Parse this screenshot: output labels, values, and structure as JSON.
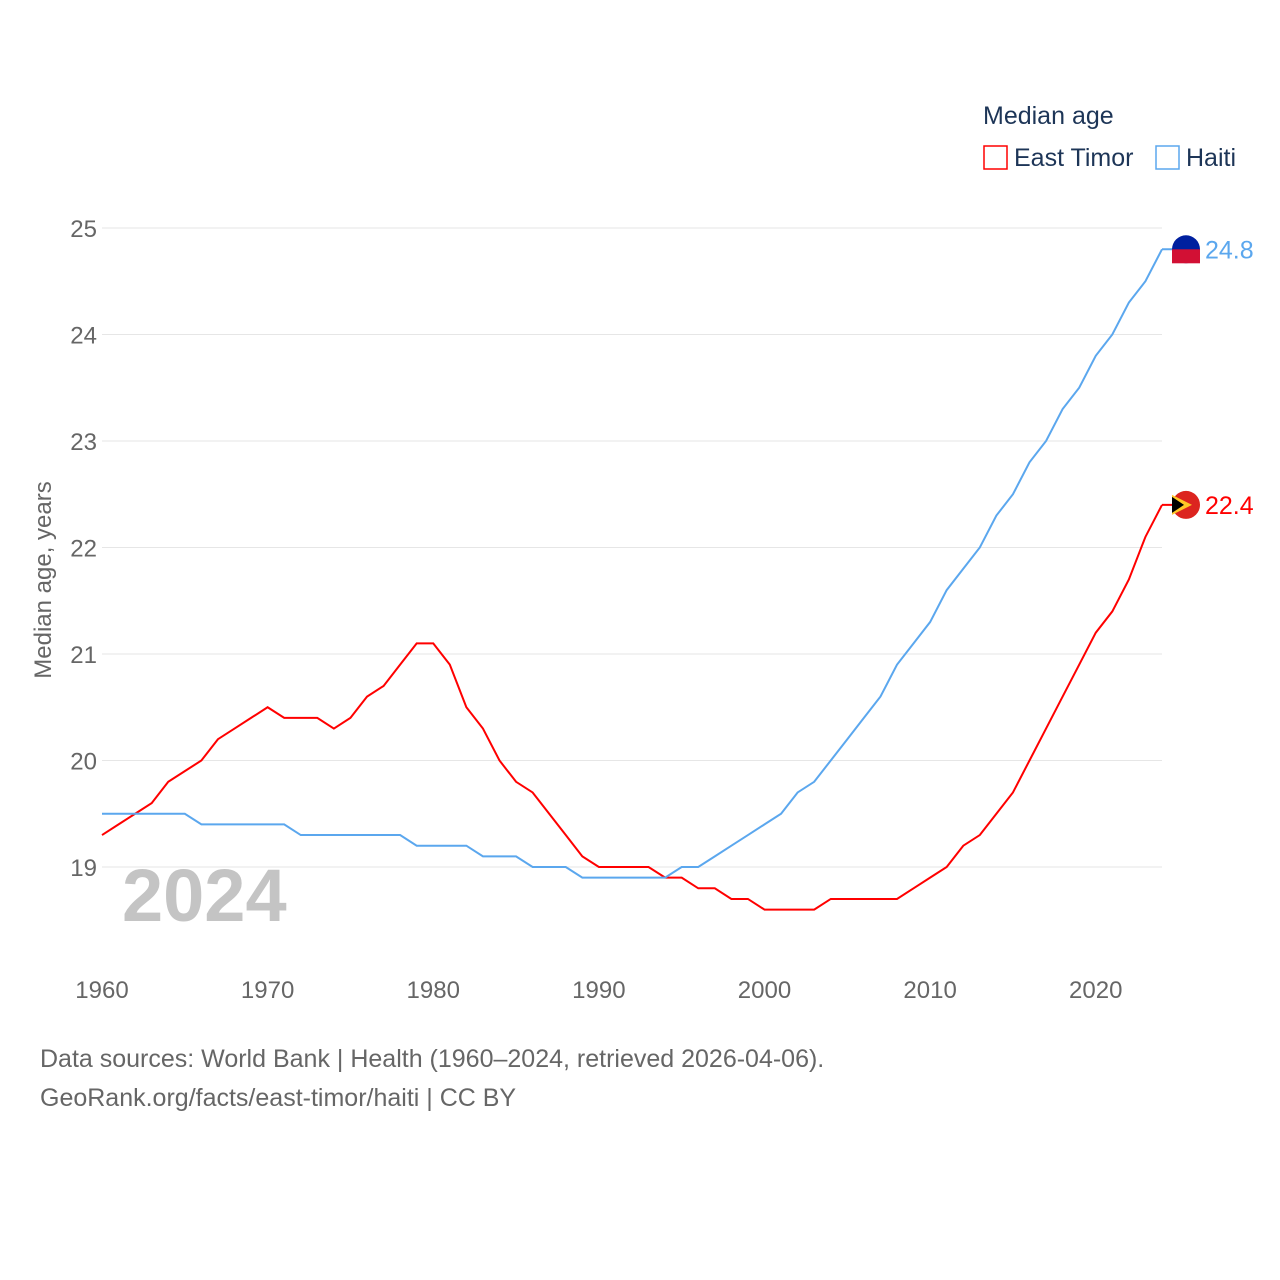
{
  "chart_data": {
    "type": "line",
    "title": "Median age",
    "xlabel": "",
    "ylabel": "Median age, years",
    "xlim": [
      1960,
      2024
    ],
    "ylim": [
      18.2,
      25
    ],
    "x_ticks": [
      "1960",
      "1970",
      "1980",
      "1990",
      "2000",
      "2010",
      "2020"
    ],
    "y_ticks": [
      "19",
      "20",
      "21",
      "22",
      "23",
      "24",
      "25"
    ],
    "grid": true,
    "legend_position": "top-right",
    "year_watermark": "2024",
    "x": [
      1960,
      1961,
      1962,
      1963,
      1964,
      1965,
      1966,
      1967,
      1968,
      1969,
      1970,
      1971,
      1972,
      1973,
      1974,
      1975,
      1976,
      1977,
      1978,
      1979,
      1980,
      1981,
      1982,
      1983,
      1984,
      1985,
      1986,
      1987,
      1988,
      1989,
      1990,
      1991,
      1992,
      1993,
      1994,
      1995,
      1996,
      1997,
      1998,
      1999,
      2000,
      2001,
      2002,
      2003,
      2004,
      2005,
      2006,
      2007,
      2008,
      2009,
      2010,
      2011,
      2012,
      2013,
      2014,
      2015,
      2016,
      2017,
      2018,
      2019,
      2020,
      2021,
      2022,
      2023,
      2024
    ],
    "series": [
      {
        "name": "East Timor",
        "color": "#ff0000",
        "end_label": "22.4",
        "values": [
          19.3,
          19.4,
          19.5,
          19.6,
          19.8,
          19.9,
          20.0,
          20.2,
          20.3,
          20.4,
          20.5,
          20.4,
          20.4,
          20.4,
          20.3,
          20.4,
          20.6,
          20.7,
          20.9,
          21.1,
          21.1,
          20.9,
          20.5,
          20.3,
          20.0,
          19.8,
          19.7,
          19.5,
          19.3,
          19.1,
          19.0,
          19.0,
          19.0,
          19.0,
          18.9,
          18.9,
          18.8,
          18.8,
          18.7,
          18.7,
          18.6,
          18.6,
          18.6,
          18.6,
          18.7,
          18.7,
          18.7,
          18.7,
          18.7,
          18.8,
          18.9,
          19.0,
          19.2,
          19.3,
          19.5,
          19.7,
          20.0,
          20.3,
          20.6,
          20.9,
          21.2,
          21.4,
          21.7,
          22.1,
          22.4
        ]
      },
      {
        "name": "Haiti",
        "color": "#5ba7ee",
        "end_label": "24.8",
        "values": [
          19.5,
          19.5,
          19.5,
          19.5,
          19.5,
          19.5,
          19.4,
          19.4,
          19.4,
          19.4,
          19.4,
          19.4,
          19.3,
          19.3,
          19.3,
          19.3,
          19.3,
          19.3,
          19.3,
          19.2,
          19.2,
          19.2,
          19.2,
          19.1,
          19.1,
          19.1,
          19.0,
          19.0,
          19.0,
          18.9,
          18.9,
          18.9,
          18.9,
          18.9,
          18.9,
          19.0,
          19.0,
          19.1,
          19.2,
          19.3,
          19.4,
          19.5,
          19.7,
          19.8,
          20.0,
          20.2,
          20.4,
          20.6,
          20.9,
          21.1,
          21.3,
          21.6,
          21.8,
          22.0,
          22.3,
          22.5,
          22.8,
          23.0,
          23.3,
          23.5,
          23.8,
          24.0,
          24.3,
          24.5,
          24.8
        ]
      }
    ]
  },
  "footer": {
    "line1": "Data sources: World Bank | Health (1960–2024, retrieved 2026-04-06).",
    "line2": "GeoRank.org/facts/east-timor/haiti | CC BY"
  }
}
